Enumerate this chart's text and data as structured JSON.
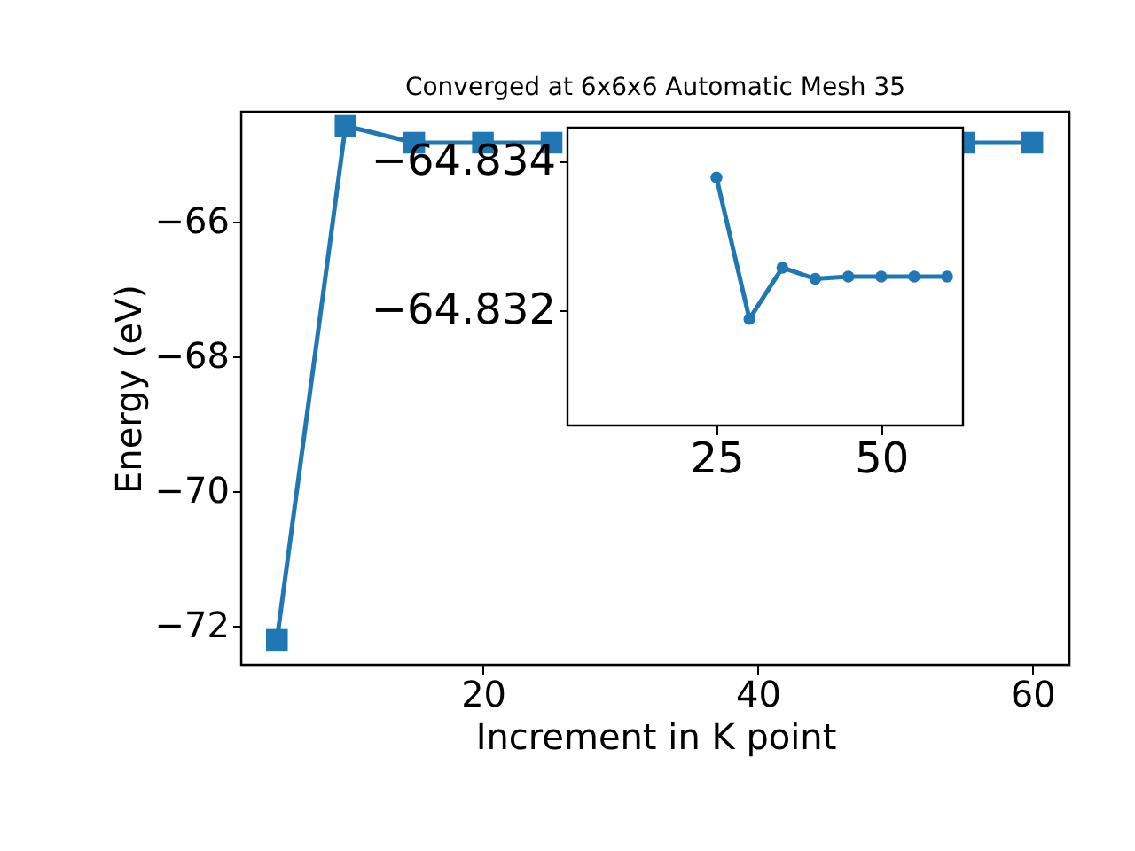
{
  "chart_data": [
    {
      "type": "line",
      "title": "Converged at 6x6x6 Automatic Mesh 35",
      "xlabel": "Increment in K point",
      "ylabel": "Energy (eV)",
      "x": [
        5,
        10,
        15,
        20,
        25,
        30,
        35,
        40,
        45,
        50,
        55,
        60
      ],
      "series": [
        {
          "color": "#1f77b4",
          "values": [
            -72.21,
            -64.58,
            -64.83,
            -64.83,
            -64.83,
            null,
            null,
            null,
            null,
            null,
            -64.83,
            -64.83
          ]
        }
      ],
      "marker": "square",
      "xlim": [
        2.4,
        62.7
      ],
      "xticks": [
        20,
        40,
        60
      ],
      "ylim": [
        -72.58,
        -64.37
      ],
      "yticks": [
        -72,
        -70,
        -68,
        -66
      ],
      "grid": false,
      "legend": false
    },
    {
      "type": "line",
      "x": [
        25,
        30,
        35,
        40,
        45,
        50,
        55,
        60
      ],
      "series": [
        {
          "color": "#1f77b4",
          "values": [
            -64.83378,
            -64.83188,
            -64.83257,
            -64.83242,
            -64.83245,
            -64.83245,
            -64.83245,
            -64.83245
          ]
        }
      ],
      "marker": "circle",
      "xlim": [
        2.4,
        62.4
      ],
      "xticks": [
        25,
        50
      ],
      "ylim": [
        -64.83045,
        -64.83445
      ],
      "yticks": [
        -64.834,
        -64.832
      ],
      "grid": false,
      "legend": false
    }
  ]
}
